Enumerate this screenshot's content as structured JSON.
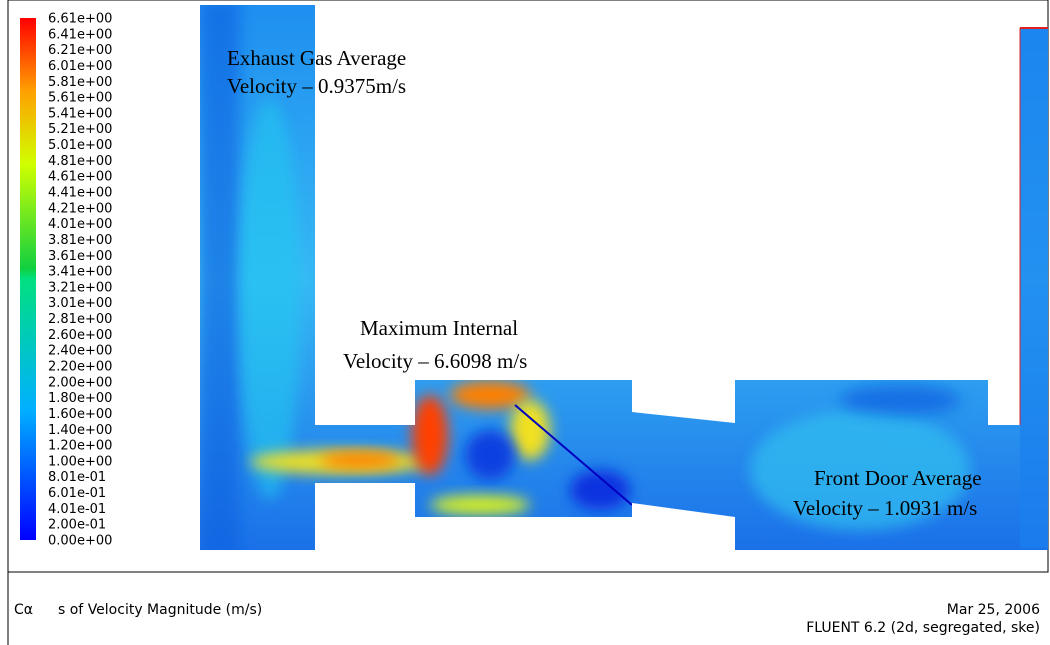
{
  "legend": {
    "labels": [
      "6.61e+00",
      "6.41e+00",
      "6.21e+00",
      "6.01e+00",
      "5.81e+00",
      "5.61e+00",
      "5.41e+00",
      "5.21e+00",
      "5.01e+00",
      "4.81e+00",
      "4.61e+00",
      "4.41e+00",
      "4.21e+00",
      "4.01e+00",
      "3.81e+00",
      "3.61e+00",
      "3.41e+00",
      "3.21e+00",
      "3.01e+00",
      "2.81e+00",
      "2.60e+00",
      "2.40e+00",
      "2.20e+00",
      "2.00e+00",
      "1.80e+00",
      "1.60e+00",
      "1.40e+00",
      "1.20e+00",
      "1.00e+00",
      "8.01e-01",
      "6.01e-01",
      "4.01e-01",
      "2.00e-01",
      "0.00e+00"
    ]
  },
  "annotations": [
    {
      "line1": "Exhaust Gas Average",
      "line2": "Velocity – 0.9375m/s"
    },
    {
      "line1": "Maximum Internal",
      "line2": "Velocity – 6.6098 m/s"
    },
    {
      "line1": "Front Door Average",
      "line2": "Velocity – 1.0931 m/s"
    }
  ],
  "footer": {
    "title_start": "Cα",
    "title_end": "s of Velocity Magnitude (m/s)",
    "date": "Mar 25, 2006",
    "version": "FLUENT 6.2 (2d, segregated, ske)"
  }
}
